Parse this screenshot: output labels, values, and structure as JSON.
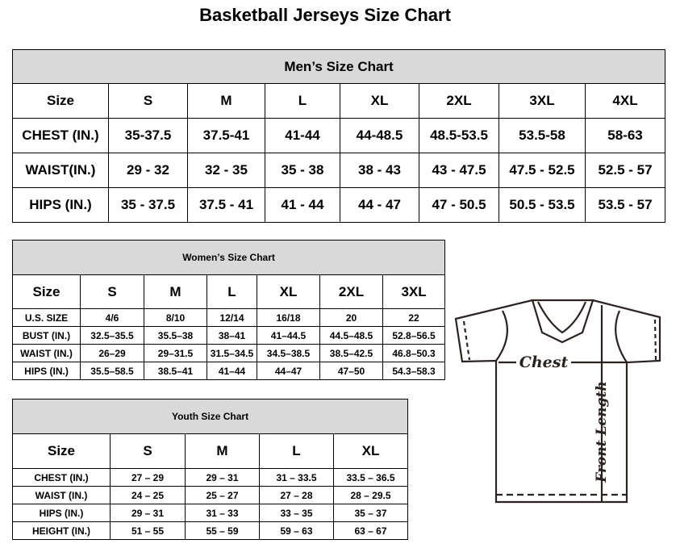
{
  "title": "Basketball Jerseys Size Chart",
  "men": {
    "title": "Men’s Size Chart",
    "header": [
      "Size",
      "S",
      "M",
      "L",
      "XL",
      "2XL",
      "3XL",
      "4XL"
    ],
    "rows": [
      [
        "CHEST (IN.)",
        "35-37.5",
        "37.5-41",
        "41-44",
        "44-48.5",
        "48.5-53.5",
        "53.5-58",
        "58-63"
      ],
      [
        "WAIST(IN.)",
        "29 - 32",
        "32 - 35",
        "35 - 38",
        "38 - 43",
        "43 - 47.5",
        "47.5 - 52.5",
        "52.5 - 57"
      ],
      [
        "HIPS (IN.)",
        "35 - 37.5",
        "37.5 - 41",
        "41 - 44",
        "44 - 47",
        "47 - 50.5",
        "50.5 - 53.5",
        "53.5 - 57"
      ]
    ]
  },
  "women": {
    "title": "Women’s Size Chart",
    "header": [
      "Size",
      "S",
      "M",
      "L",
      "XL",
      "2XL",
      "3XL"
    ],
    "rows": [
      [
        "U.S.  SIZE",
        "4/6",
        "8/10",
        "12/14",
        "16/18",
        "20",
        "22"
      ],
      [
        "BUST  (IN.)",
        "32.5–35.5",
        "35.5–38",
        "38–41",
        "41–44.5",
        "44.5–48.5",
        "52.8–56.5"
      ],
      [
        "WAIST  (IN.)",
        "26–29",
        "29–31.5",
        "31.5–34.5",
        "34.5–38.5",
        "38.5–42.5",
        "46.8–50.3"
      ],
      [
        "HIPS  (IN.)",
        "35.5–58.5",
        "38.5–41",
        "41–44",
        "44–47",
        "47–50",
        "54.3–58.3"
      ]
    ]
  },
  "youth": {
    "title": "Youth Size Chart",
    "header": [
      "Size",
      "S",
      "M",
      "L",
      "XL"
    ],
    "rows": [
      [
        "CHEST  (IN.)",
        "27  –  29",
        "29  –  31",
        "31  –  33.5",
        "33.5  –  36.5"
      ],
      [
        "WAIST  (IN.)",
        "24  –  25",
        "25  –  27",
        "27  –  28",
        "28  –  29.5"
      ],
      [
        "HIPS  (IN.)",
        "29  –  31",
        "31  –  33",
        "33  –  35",
        "35  –  37"
      ],
      [
        "HEIGHT  (IN.)",
        "51  –  55",
        "55  –  59",
        "59  –  63",
        "63  –  67"
      ]
    ]
  },
  "diagram": {
    "chest_label": "Chest",
    "length_label": "Front Length",
    "icon": "t-shirt-icon",
    "line_color": "#2b2220"
  }
}
